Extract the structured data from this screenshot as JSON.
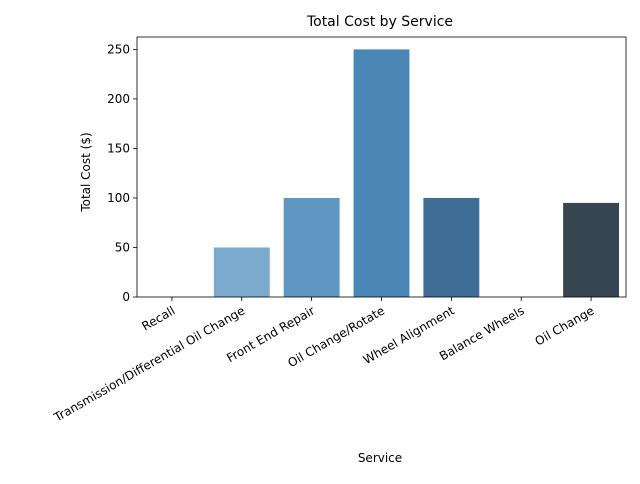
{
  "chart_data": {
    "type": "bar",
    "title": "Total Cost by Service",
    "xlabel": "Service",
    "ylabel": "Total Cost ($)",
    "categories": [
      "Recall",
      "Transmission/Differential Oil Change",
      "Front End Repair",
      "Oil Change/Rotate",
      "Wheel Alignment",
      "Balance Wheels",
      "Oil Change"
    ],
    "values": [
      0,
      50,
      100,
      250,
      100,
      0,
      95
    ],
    "colors": [
      "#a6c8e4",
      "#7aaacd",
      "#5f97c2",
      "#4a87b6",
      "#3f6f96",
      "#354f6a",
      "#36454f"
    ],
    "yticks": [
      0,
      50,
      100,
      150,
      200,
      250
    ],
    "ylim": [
      0,
      262.5
    ],
    "grid": false,
    "legend": "none"
  }
}
